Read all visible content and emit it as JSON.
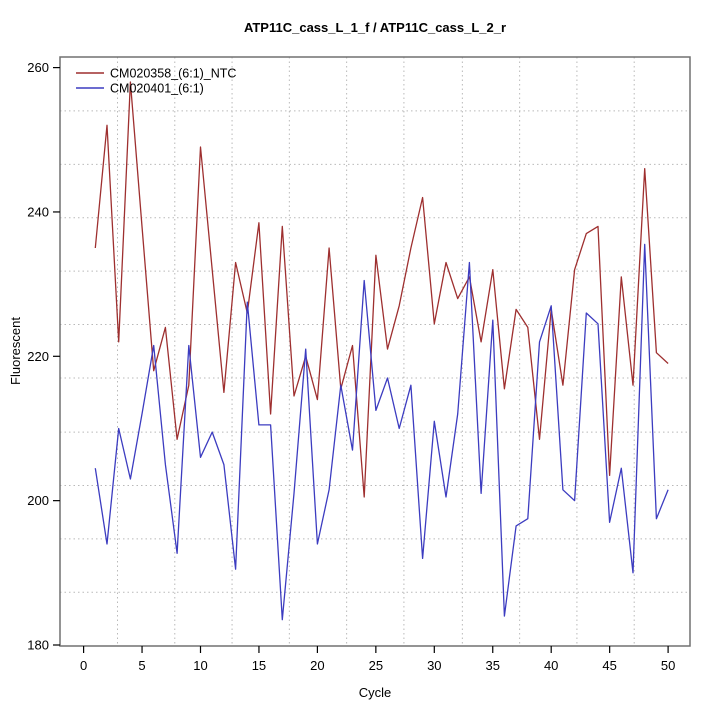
{
  "chart_data": {
    "type": "line",
    "title": "ATP11C_cass_L_1_f / ATP11C_cass_L_2_r",
    "xlabel": "Cycle",
    "ylabel": "Fluorescent",
    "xlim": [
      -2,
      52
    ],
    "ylim": [
      180,
      261.4
    ],
    "x_ticks": [
      0,
      5,
      10,
      15,
      20,
      25,
      30,
      35,
      40,
      45,
      50
    ],
    "y_ticks": [
      180,
      200,
      220,
      240,
      260
    ],
    "grid": "dotted, light gray, 10x10 cells not aligned to ticks",
    "grid_x_positions": [
      2.9,
      7.8,
      12.7,
      17.6,
      22.5,
      27.4,
      32.4,
      37.3,
      42.2,
      47.1
    ],
    "grid_y_positions": [
      187.3,
      194.7,
      202.1,
      209.5,
      217.0,
      224.4,
      231.8,
      239.2,
      246.6,
      254.0
    ],
    "legend_position": "top-left inside plot",
    "x": [
      1,
      2,
      3,
      4,
      5,
      6,
      7,
      8,
      9,
      10,
      11,
      12,
      13,
      14,
      15,
      16,
      17,
      18,
      19,
      20,
      21,
      22,
      23,
      24,
      25,
      26,
      27,
      28,
      29,
      30,
      31,
      32,
      33,
      34,
      35,
      36,
      37,
      38,
      39,
      40,
      41,
      42,
      43,
      44,
      45,
      46,
      47,
      48,
      49,
      50
    ],
    "series": [
      {
        "name": "CM020358_(6:1)_NTC",
        "color": "#9E2F2F",
        "values": [
          235,
          252,
          222,
          258,
          238,
          218,
          224,
          208.5,
          216,
          249,
          232,
          215,
          233,
          226,
          238.5,
          212,
          238,
          214.5,
          220,
          214,
          235,
          215.5,
          221.5,
          200.5,
          234,
          221,
          227,
          235,
          242,
          224.5,
          233,
          228,
          231,
          222,
          232,
          215.5,
          226.5,
          224,
          208.5,
          226.5,
          216,
          232,
          237,
          238,
          203.5,
          231,
          216,
          246,
          220.5,
          219
        ]
      },
      {
        "name": "CM020401_(6:1)",
        "color": "#3C3CC0",
        "values": [
          204.5,
          194,
          210,
          203,
          212,
          221.5,
          205,
          192.7,
          221.5,
          206,
          209.5,
          205,
          190.5,
          227.5,
          210.5,
          210.5,
          183.5,
          201,
          221,
          194,
          201.5,
          216,
          207,
          230.5,
          212.5,
          217,
          210,
          216,
          192,
          211,
          200.5,
          212,
          233,
          201,
          225,
          184,
          196.5,
          197.5,
          222,
          227,
          201.5,
          200,
          226,
          224.5,
          197,
          204.5,
          190,
          235.5,
          197.5,
          201.5
        ]
      }
    ]
  }
}
